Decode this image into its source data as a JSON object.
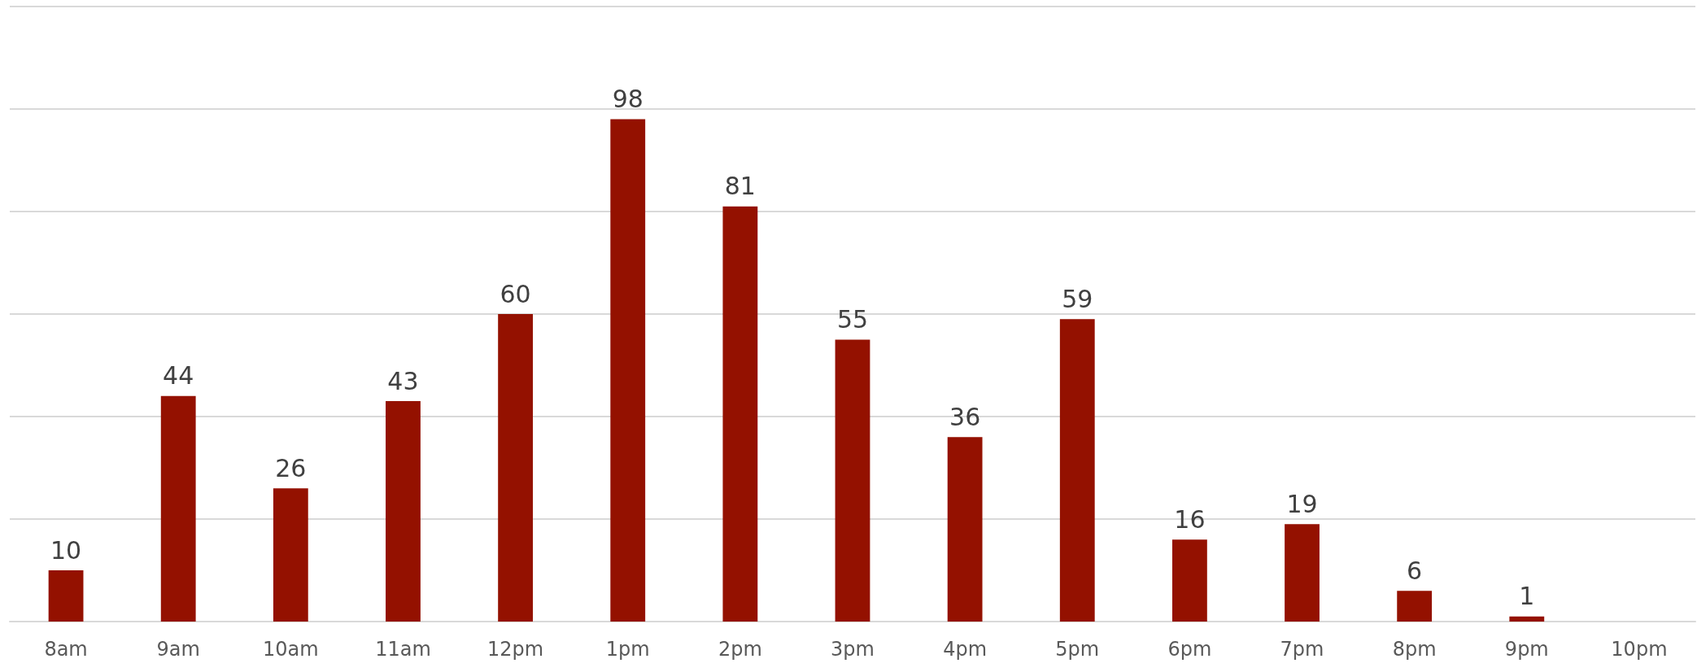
{
  "chart_data": {
    "type": "bar",
    "categories": [
      "8am",
      "9am",
      "10am",
      "11am",
      "12pm",
      "1pm",
      "2pm",
      "3pm",
      "4pm",
      "5pm",
      "6pm",
      "7pm",
      "8pm",
      "9pm",
      "10pm"
    ],
    "values": [
      10,
      44,
      26,
      43,
      60,
      98,
      81,
      55,
      36,
      59,
      16,
      19,
      6,
      1,
      null
    ],
    "color": "#941100",
    "ylim": [
      0,
      120
    ],
    "yticks": [
      {
        "value": 0,
        "label": null
      },
      {
        "value": 20,
        "label": null
      },
      {
        "value": 40,
        "label": null
      },
      {
        "value": 60,
        "label": null
      },
      {
        "value": 80,
        "label": null
      },
      {
        "value": 100,
        "label": null
      },
      {
        "value": 120,
        "label": null
      }
    ],
    "grid": "y",
    "data_labels": true,
    "tick_labels": "x"
  }
}
